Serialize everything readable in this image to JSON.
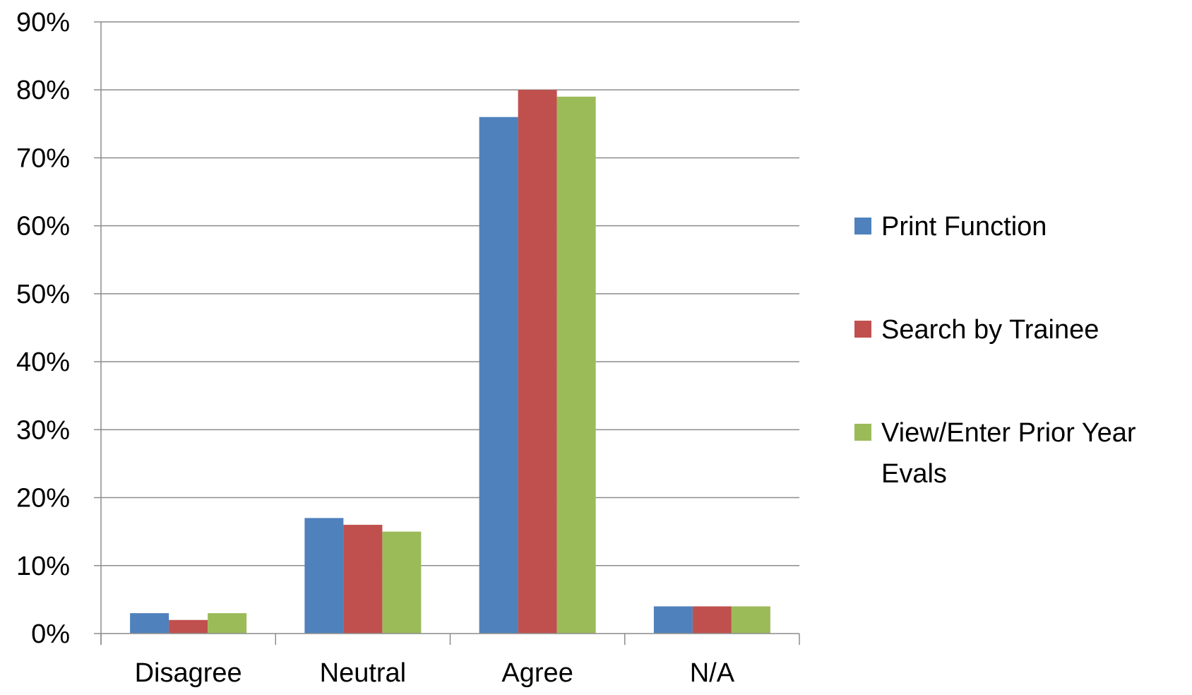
{
  "chart_data": {
    "type": "bar",
    "title": "",
    "xlabel": "",
    "ylabel": "",
    "categories": [
      "Disagree",
      "Neutral",
      "Agree",
      "N/A"
    ],
    "series": [
      {
        "name": "Print Function",
        "color": "#4F81BD",
        "values": [
          3,
          17,
          76,
          4
        ]
      },
      {
        "name": "Search by Trainee",
        "color": "#C0504D",
        "values": [
          2,
          16,
          80,
          4
        ]
      },
      {
        "name": "View/Enter Prior Year Evals",
        "color": "#9BBB59",
        "values": [
          3,
          15,
          79,
          4
        ]
      }
    ],
    "ylim": [
      0,
      90
    ],
    "yticks": [
      "0%",
      "10%",
      "20%",
      "30%",
      "40%",
      "50%",
      "60%",
      "70%",
      "80%",
      "90%"
    ],
    "grid": true,
    "legend_position": "right"
  }
}
